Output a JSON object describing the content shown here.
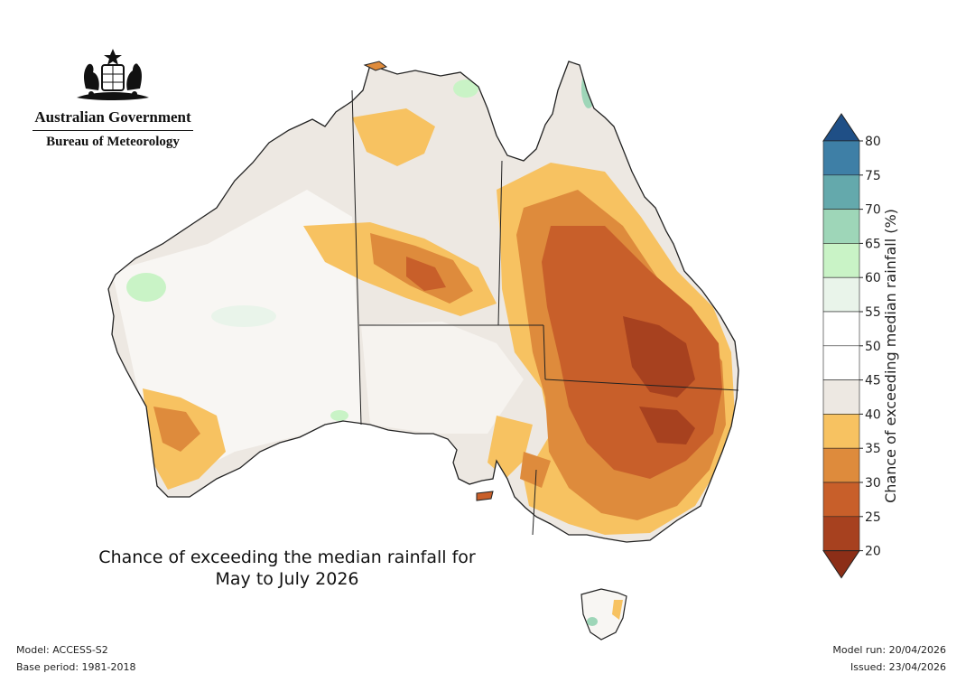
{
  "header": {
    "org": "Australian Government",
    "agency": "Bureau of Meteorology"
  },
  "caption": {
    "line1": "Chance of exceeding the median rainfall for",
    "line2": "May to July 2026"
  },
  "footer": {
    "model": "Model: ACCESS-S2",
    "base_period": "Base period: 1981-2018",
    "model_run": "Model run: 20/04/2026",
    "issued": "Issued: 23/04/2026"
  },
  "legend": {
    "title": "Chance of exceeding median rainfall (%)",
    "ticks": [
      "80",
      "75",
      "70",
      "65",
      "60",
      "55",
      "50",
      "45",
      "40",
      "35",
      "30",
      "25",
      "20"
    ],
    "colors": {
      "20-25": "#a7411f",
      "25-30": "#c85f2a",
      "30-35": "#de8b3c",
      "35-40": "#f7c261",
      "40-45": "#ede8e2",
      "45-50": "#ffffff",
      "50-55": "#ffffff",
      "55-60": "#e9f4ea",
      "60-65": "#c9f3c6",
      "65-70": "#9ed6b8",
      "70-75": "#64a9ac",
      "75-80": "#3e7fa6",
      "above-80": "#1f4f86",
      "below-20": "#8c2e17"
    }
  }
}
